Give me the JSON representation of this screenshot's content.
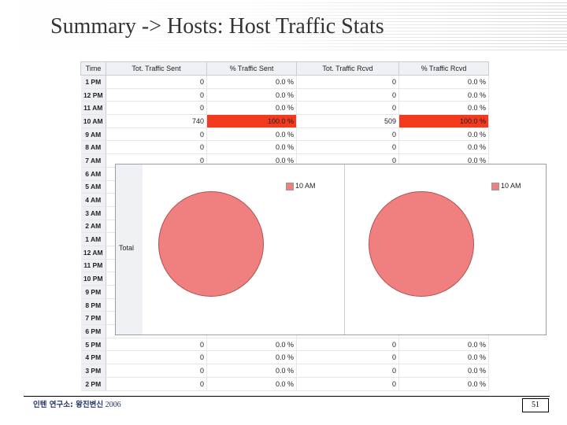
{
  "slide": {
    "title": "Summary -> Hosts: Host Traffic Stats",
    "footer_left_bold": "인텐 연구소: 왕진변신",
    "footer_year": "2006",
    "page_number": "51"
  },
  "table": {
    "headers": [
      "Time",
      "Tot. Traffic Sent",
      "% Traffic Sent",
      "Tot. Traffic Rcvd",
      "% Traffic Rcvd"
    ],
    "rows": [
      {
        "time": "1 PM",
        "sent": "0",
        "sent_pct": "0.0 %",
        "rcvd": "0",
        "rcvd_pct": "0.0 %",
        "highlight": false
      },
      {
        "time": "12 PM",
        "sent": "0",
        "sent_pct": "0.0 %",
        "rcvd": "0",
        "rcvd_pct": "0.0 %",
        "highlight": false
      },
      {
        "time": "11 AM",
        "sent": "0",
        "sent_pct": "0.0 %",
        "rcvd": "0",
        "rcvd_pct": "0.0 %",
        "highlight": false
      },
      {
        "time": "10 AM",
        "sent": "740",
        "sent_pct": "100.0 %",
        "rcvd": "509",
        "rcvd_pct": "100.0 %",
        "highlight": true
      },
      {
        "time": "9 AM",
        "sent": "0",
        "sent_pct": "0.0 %",
        "rcvd": "0",
        "rcvd_pct": "0.0 %",
        "highlight": false
      },
      {
        "time": "8 AM",
        "sent": "0",
        "sent_pct": "0.0 %",
        "rcvd": "0",
        "rcvd_pct": "0.0 %",
        "highlight": false
      },
      {
        "time": "7 AM",
        "sent": "0",
        "sent_pct": "0.0 %",
        "rcvd": "0",
        "rcvd_pct": "0.0 %",
        "highlight": false
      },
      {
        "time": "6 AM",
        "sent": "",
        "sent_pct": "",
        "rcvd": "",
        "rcvd_pct": "",
        "highlight": false
      },
      {
        "time": "5 AM",
        "sent": "",
        "sent_pct": "",
        "rcvd": "",
        "rcvd_pct": "",
        "highlight": false
      },
      {
        "time": "4 AM",
        "sent": "",
        "sent_pct": "",
        "rcvd": "",
        "rcvd_pct": "",
        "highlight": false
      },
      {
        "time": "3 AM",
        "sent": "",
        "sent_pct": "",
        "rcvd": "",
        "rcvd_pct": "",
        "highlight": false
      },
      {
        "time": "2 AM",
        "sent": "",
        "sent_pct": "",
        "rcvd": "",
        "rcvd_pct": "",
        "highlight": false
      },
      {
        "time": "1 AM",
        "sent": "",
        "sent_pct": "",
        "rcvd": "",
        "rcvd_pct": "",
        "highlight": false
      },
      {
        "time": "12 AM",
        "sent": "",
        "sent_pct": "",
        "rcvd": "",
        "rcvd_pct": "",
        "highlight": false
      },
      {
        "time": "11 PM",
        "sent": "",
        "sent_pct": "",
        "rcvd": "",
        "rcvd_pct": "",
        "highlight": false
      },
      {
        "time": "10 PM",
        "sent": "",
        "sent_pct": "",
        "rcvd": "",
        "rcvd_pct": "",
        "highlight": false
      },
      {
        "time": "9 PM",
        "sent": "",
        "sent_pct": "",
        "rcvd": "",
        "rcvd_pct": "",
        "highlight": false
      },
      {
        "time": "8 PM",
        "sent": "",
        "sent_pct": "",
        "rcvd": "",
        "rcvd_pct": "",
        "highlight": false
      },
      {
        "time": "7 PM",
        "sent": "",
        "sent_pct": "",
        "rcvd": "",
        "rcvd_pct": "",
        "highlight": false
      },
      {
        "time": "6 PM",
        "sent": "",
        "sent_pct": "",
        "rcvd": "",
        "rcvd_pct": "",
        "highlight": false
      },
      {
        "time": "5 PM",
        "sent": "0",
        "sent_pct": "0.0 %",
        "rcvd": "0",
        "rcvd_pct": "0.0 %",
        "highlight": false
      },
      {
        "time": "4 PM",
        "sent": "0",
        "sent_pct": "0.0 %",
        "rcvd": "0",
        "rcvd_pct": "0.0 %",
        "highlight": false
      },
      {
        "time": "3 PM",
        "sent": "0",
        "sent_pct": "0.0 %",
        "rcvd": "0",
        "rcvd_pct": "0.0 %",
        "highlight": false
      },
      {
        "time": "2 PM",
        "sent": "0",
        "sent_pct": "0.0 %",
        "rcvd": "0",
        "rcvd_pct": "0.0 %",
        "highlight": false
      }
    ]
  },
  "overlay": {
    "row_label": "Total",
    "charts": [
      {
        "legend": "10 AM",
        "color": "#f08080",
        "slices": [
          {
            "label": "10 AM",
            "value": 100.0
          }
        ]
      },
      {
        "legend": "10 AM",
        "color": "#f08080",
        "slices": [
          {
            "label": "10 AM",
            "value": 100.0
          }
        ]
      }
    ]
  },
  "colors": {
    "highlight": "#f23a1e",
    "pie": "#f08080",
    "header_bg": "#eef0f4"
  }
}
